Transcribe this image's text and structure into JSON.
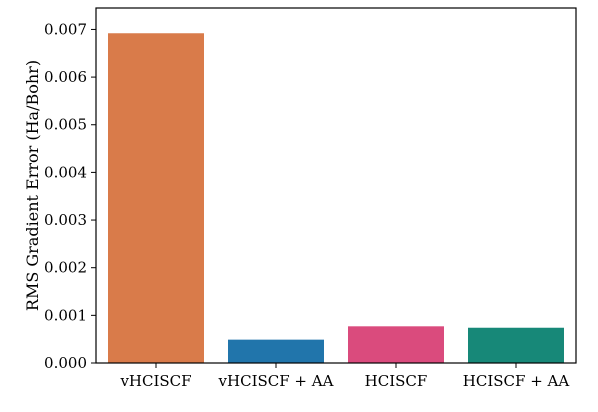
{
  "chart_data": {
    "type": "bar",
    "ylabel": "RMS Gradient Error (Ha/Bohr)",
    "xlabel": "",
    "title": "",
    "ylim": [
      0,
      0.00745
    ],
    "yticks": [
      0.0,
      0.001,
      0.002,
      0.003,
      0.004,
      0.005,
      0.006,
      0.007
    ],
    "ytick_labels": [
      "0.000",
      "0.001",
      "0.002",
      "0.003",
      "0.004",
      "0.005",
      "0.006",
      "0.007"
    ],
    "grid": false,
    "bars": [
      {
        "category": "vHCISCF",
        "value": 0.00692,
        "color": "#d97b4a"
      },
      {
        "category": "vHCISCF + AA",
        "value": 0.00049,
        "color": "#2175ab"
      },
      {
        "category": "HCISCF",
        "value": 0.00077,
        "color": "#da4b7d"
      },
      {
        "category": "HCISCF + AA",
        "value": 0.00074,
        "color": "#178878"
      }
    ]
  }
}
